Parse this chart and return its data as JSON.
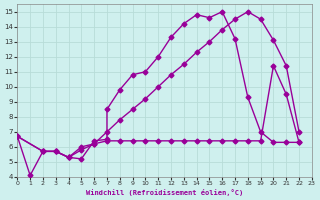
{
  "xlabel": "Windchill (Refroidissement éolien,°C)",
  "bg_color": "#cff0ee",
  "grid_color": "#b8dcd8",
  "line_color": "#990099",
  "xlim": [
    0,
    23
  ],
  "ylim": [
    4,
    15
  ],
  "xticks": [
    0,
    1,
    2,
    3,
    4,
    5,
    6,
    7,
    8,
    9,
    10,
    11,
    12,
    13,
    14,
    15,
    16,
    17,
    18,
    19,
    20,
    21,
    22,
    23
  ],
  "yticks": [
    4,
    5,
    6,
    7,
    8,
    9,
    10,
    11,
    12,
    13,
    14,
    15
  ],
  "curve1_x": [
    0,
    1,
    2,
    3,
    4,
    5,
    6,
    7,
    7,
    8,
    9,
    10,
    11,
    12,
    13,
    14,
    15,
    16,
    17,
    18,
    19,
    20,
    21,
    22
  ],
  "curve1_y": [
    6.7,
    4.1,
    5.7,
    5.7,
    5.3,
    5.2,
    6.4,
    6.5,
    8.5,
    9.8,
    10.8,
    11.0,
    12.0,
    13.3,
    14.2,
    14.8,
    14.6,
    15.0,
    13.2,
    9.3,
    7.0,
    6.3,
    6.3,
    6.3
  ],
  "curve2_x": [
    0,
    2,
    3,
    4,
    5,
    6,
    7,
    8,
    9,
    10,
    11,
    12,
    13,
    14,
    15,
    16,
    17,
    18,
    19,
    20,
    21,
    22
  ],
  "curve2_y": [
    6.7,
    5.7,
    5.7,
    5.3,
    5.8,
    6.2,
    7.0,
    7.8,
    8.5,
    9.2,
    10.0,
    10.8,
    11.5,
    12.3,
    13.0,
    13.8,
    14.5,
    15.0,
    14.5,
    13.1,
    11.4,
    7.0
  ],
  "curve3_x": [
    0,
    2,
    3,
    4,
    5,
    6,
    7,
    8,
    9,
    10,
    11,
    12,
    13,
    14,
    15,
    16,
    17,
    18,
    19,
    20,
    21,
    22
  ],
  "curve3_y": [
    6.7,
    5.7,
    5.7,
    5.3,
    6.0,
    6.2,
    6.4,
    6.4,
    6.4,
    6.4,
    6.4,
    6.4,
    6.4,
    6.4,
    6.4,
    6.4,
    6.4,
    6.4,
    6.4,
    11.4,
    9.5,
    6.3
  ],
  "marker": "D",
  "marker_size": 2.5,
  "line_width": 1.0
}
